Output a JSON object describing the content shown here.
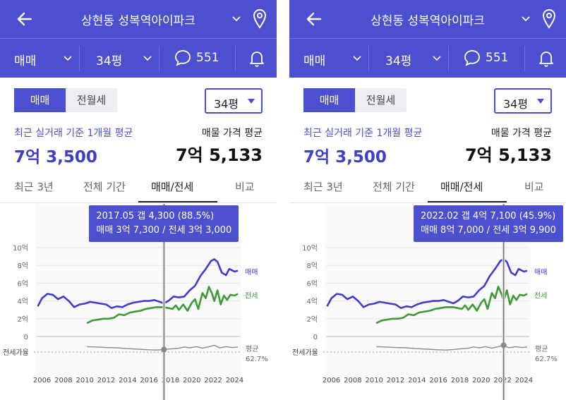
{
  "screens": [
    {
      "header": {
        "title": "상현동 성복역아이파크"
      },
      "subbar": {
        "trade_type": "매매",
        "size": "34평",
        "comment_count": "551"
      },
      "segment": {
        "active": "매매",
        "inactive": "전월세"
      },
      "size_select": "34평",
      "avg": {
        "label": "최근 실거래 기준 1개월 평균",
        "value": "7억 3,500"
      },
      "asking": {
        "label": "매물 가격 평균",
        "value": "7억 5,133"
      },
      "tabs": [
        "최근 3년",
        "전체 기간",
        "매매/전세",
        "비교"
      ],
      "active_tab": 2,
      "tooltip": {
        "line1": "2017.05  갭 4,300 (88.5%)",
        "line2": "매매 3억 7,300 / 전세 3억 3,000"
      },
      "cursor_year": 2017.4
    },
    {
      "header": {
        "title": "상현동 성복역아이파크"
      },
      "subbar": {
        "trade_type": "매매",
        "size": "34평",
        "comment_count": "551"
      },
      "segment": {
        "active": "매매",
        "inactive": "전월세"
      },
      "size_select": "34평",
      "avg": {
        "label": "최근 실거래 기준 1개월 평균",
        "value": "7억 3,500"
      },
      "asking": {
        "label": "매물 가격 평균",
        "value": "7억 5,133"
      },
      "tabs": [
        "최근 3년",
        "전체 기간",
        "매매/전세",
        "비교"
      ],
      "active_tab": 2,
      "tooltip": {
        "line1": "2022.02  갭 4억 7,100 (45.9%)",
        "line2": "매매 8억 7,000 / 전세 3억 9,900"
      },
      "cursor_year": 2022.1
    }
  ],
  "colors": {
    "header_bg": "#4b4fd0",
    "sale": "#3f3bd2",
    "jeonse": "#3d9a35",
    "ratio": "#8a8a8a"
  },
  "chart_data": {
    "type": "line",
    "xlabel": "",
    "ylabel": "",
    "x_ticks": [
      "2006",
      "2008",
      "2010",
      "2012",
      "2014",
      "2016",
      "2018",
      "2020",
      "2022",
      "2024"
    ],
    "y_ticks": [
      "10억",
      "8억",
      "6억",
      "4억",
      "2억",
      "0"
    ],
    "ylim": [
      0,
      10
    ],
    "xlim": [
      2005.5,
      2024.5
    ],
    "ratio_label": "전세가율",
    "ratio_avg_label": "평균",
    "ratio_avg_value": "62.7%",
    "series": [
      {
        "name": "매매",
        "points": [
          [
            2005.6,
            3.4
          ],
          [
            2006.0,
            4.3
          ],
          [
            2006.5,
            4.8
          ],
          [
            2007.0,
            4.7
          ],
          [
            2007.5,
            4.2
          ],
          [
            2008.0,
            4.5
          ],
          [
            2008.5,
            4.0
          ],
          [
            2009.0,
            3.3
          ],
          [
            2009.5,
            3.6
          ],
          [
            2010.0,
            3.7
          ],
          [
            2010.5,
            3.9
          ],
          [
            2011.0,
            3.8
          ],
          [
            2011.5,
            3.7
          ],
          [
            2012.0,
            3.6
          ],
          [
            2012.5,
            3.2
          ],
          [
            2013.0,
            3.4
          ],
          [
            2013.5,
            3.3
          ],
          [
            2014.0,
            3.6
          ],
          [
            2014.5,
            3.8
          ],
          [
            2015.0,
            3.9
          ],
          [
            2015.5,
            4.0
          ],
          [
            2016.0,
            4.0
          ],
          [
            2016.5,
            4.1
          ],
          [
            2017.0,
            3.9
          ],
          [
            2017.4,
            3.73
          ],
          [
            2017.8,
            4.0
          ],
          [
            2018.3,
            4.5
          ],
          [
            2018.8,
            4.4
          ],
          [
            2019.3,
            4.5
          ],
          [
            2019.8,
            5.2
          ],
          [
            2020.3,
            5.7
          ],
          [
            2020.8,
            6.8
          ],
          [
            2021.3,
            7.6
          ],
          [
            2021.8,
            8.5
          ],
          [
            2022.1,
            8.7
          ],
          [
            2022.4,
            8.4
          ],
          [
            2022.8,
            7.2
          ],
          [
            2023.2,
            6.9
          ],
          [
            2023.5,
            7.6
          ],
          [
            2024.0,
            7.3
          ],
          [
            2024.3,
            7.4
          ]
        ]
      },
      {
        "name": "전세",
        "points": [
          [
            2010.2,
            1.5
          ],
          [
            2010.7,
            1.8
          ],
          [
            2011.2,
            1.9
          ],
          [
            2011.7,
            2.0
          ],
          [
            2012.2,
            2.0
          ],
          [
            2012.7,
            2.1
          ],
          [
            2013.2,
            2.5
          ],
          [
            2013.7,
            2.4
          ],
          [
            2014.2,
            2.7
          ],
          [
            2014.7,
            2.8
          ],
          [
            2015.2,
            2.9
          ],
          [
            2015.7,
            3.1
          ],
          [
            2016.2,
            3.2
          ],
          [
            2016.7,
            3.3
          ],
          [
            2017.0,
            3.3
          ],
          [
            2017.4,
            3.3
          ],
          [
            2017.8,
            3.2
          ],
          [
            2018.2,
            3.1
          ],
          [
            2018.5,
            3.5
          ],
          [
            2018.8,
            3.0
          ],
          [
            2019.2,
            3.6
          ],
          [
            2019.6,
            2.9
          ],
          [
            2020.0,
            3.8
          ],
          [
            2020.3,
            4.2
          ],
          [
            2020.6,
            3.1
          ],
          [
            2021.0,
            4.9
          ],
          [
            2021.3,
            4.3
          ],
          [
            2021.6,
            5.6
          ],
          [
            2021.9,
            4.8
          ],
          [
            2022.1,
            3.99
          ],
          [
            2022.4,
            5.2
          ],
          [
            2022.7,
            3.6
          ],
          [
            2023.0,
            4.6
          ],
          [
            2023.3,
            4.1
          ],
          [
            2023.6,
            4.7
          ],
          [
            2024.0,
            4.6
          ],
          [
            2024.3,
            4.8
          ]
        ]
      },
      {
        "name": "전세가율",
        "points": [
          [
            2010.2,
            -1.9
          ],
          [
            2011.0,
            -1.8
          ],
          [
            2012.0,
            -1.6
          ],
          [
            2013.0,
            -1.5
          ],
          [
            2014.0,
            -1.2
          ],
          [
            2015.0,
            -1.0
          ],
          [
            2016.0,
            -0.8
          ],
          [
            2016.7,
            -0.7
          ],
          [
            2017.4,
            -0.9
          ],
          [
            2018.0,
            -1.1
          ],
          [
            2018.7,
            -1.3
          ],
          [
            2019.3,
            -1.8
          ],
          [
            2019.8,
            -1.5
          ],
          [
            2020.4,
            -1.9
          ],
          [
            2021.0,
            -1.4
          ],
          [
            2021.6,
            -1.9
          ],
          [
            2022.1,
            -2.4
          ],
          [
            2022.6,
            -1.5
          ],
          [
            2023.2,
            -1.9
          ],
          [
            2023.8,
            -1.6
          ],
          [
            2024.3,
            -1.8
          ]
        ]
      }
    ]
  }
}
